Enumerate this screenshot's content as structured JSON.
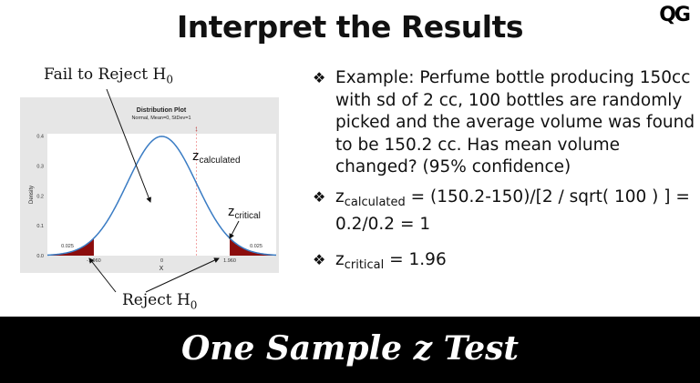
{
  "slide": {
    "title": "Interpret the Results",
    "logo": "QG",
    "footer": "One Sample z Test",
    "label_fail": "Fail to Reject H",
    "label_reject": "Reject H",
    "label_sub": "0",
    "bullets": [
      {
        "text": "Example: Perfume bottle producing 150cc with sd of 2 cc,  100 bottles are randomly picked and the average volume was found to be 150.2 cc. Has mean volume changed? (95% confidence)"
      },
      {
        "z": "z",
        "sub": "calculated",
        "text": " = (150.2-150)/[2 / sqrt( 100 ) ] = 0.2/0.2 = 1"
      },
      {
        "z": "z",
        "sub": "critical",
        "text": " = 1.96"
      }
    ],
    "bullet_marker": "❖"
  },
  "chart_data": {
    "type": "area",
    "title": "Distribution Plot",
    "subtitle": "Normal, Mean=0, StDev=1",
    "xlabel": "X",
    "ylabel": "Density",
    "distribution": {
      "family": "normal",
      "mean": 0,
      "sd": 1
    },
    "xlim": [
      -3.3,
      3.3
    ],
    "ylim": [
      0,
      0.42
    ],
    "yticks": [
      "0.0",
      "0.1",
      "0.2",
      "0.3",
      "0.4"
    ],
    "xticks": [
      {
        "v": -1.96,
        "label": "-1.960"
      },
      {
        "v": 0,
        "label": "0"
      },
      {
        "v": 1.96,
        "label": "1.960"
      }
    ],
    "shaded_tails": [
      {
        "from": -3.3,
        "to": -1.96,
        "area_label": "0.025"
      },
      {
        "from": 1.96,
        "to": 3.3,
        "area_label": "0.025"
      }
    ],
    "reference_line": {
      "x": 1,
      "label": "1"
    },
    "annotations": {
      "z_calc": "z",
      "z_calc_sub": "calculated",
      "z_crit": "z",
      "z_crit_sub": "critical"
    },
    "colors": {
      "curve": "#3a7cc4",
      "tail": "#8b0d0d",
      "panel": "#e6e6e6",
      "refline": "#f09090"
    }
  }
}
